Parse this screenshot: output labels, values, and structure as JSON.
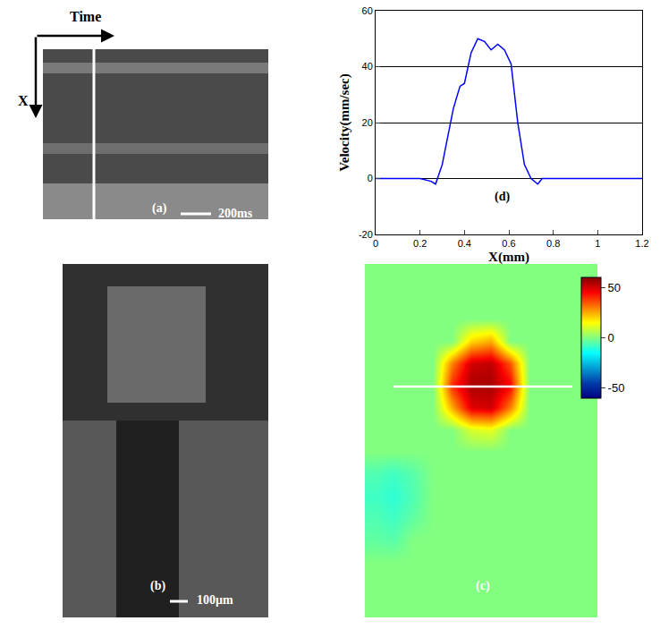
{
  "chart_data": [
    {
      "type": "image",
      "title": "(a)",
      "annotations": [
        "Time",
        "X",
        "200ms"
      ]
    },
    {
      "type": "image",
      "title": "(b)",
      "annotations": [
        "100µm"
      ]
    },
    {
      "type": "heatmap",
      "title": "(c)",
      "z": [
        [
          0,
          0,
          0,
          0,
          0,
          0,
          0,
          0,
          0,
          0,
          0,
          0
        ],
        [
          0,
          0,
          0,
          0,
          0,
          0,
          0,
          0,
          0,
          0,
          0,
          0
        ],
        [
          0,
          0,
          0,
          0,
          0,
          0,
          0,
          0,
          0,
          0,
          0,
          0
        ],
        [
          0,
          0,
          0,
          0,
          0,
          20,
          25,
          0,
          0,
          0,
          0,
          0
        ],
        [
          0,
          0,
          0,
          0,
          30,
          50,
          52,
          35,
          0,
          0,
          0,
          0
        ],
        [
          0,
          0,
          0,
          0,
          40,
          55,
          55,
          45,
          0,
          0,
          0,
          0
        ],
        [
          0,
          0,
          0,
          0,
          25,
          48,
          50,
          30,
          0,
          0,
          0,
          0
        ],
        [
          0,
          0,
          0,
          0,
          0,
          10,
          12,
          0,
          0,
          0,
          0,
          0
        ],
        [
          0,
          0,
          0,
          0,
          0,
          0,
          0,
          0,
          0,
          0,
          0,
          0
        ],
        [
          -6,
          -8,
          -5,
          0,
          0,
          0,
          0,
          0,
          0,
          0,
          0,
          0
        ],
        [
          -8,
          -10,
          -6,
          0,
          0,
          0,
          0,
          0,
          0,
          0,
          0,
          0
        ],
        [
          -6,
          -8,
          -4,
          0,
          0,
          0,
          0,
          0,
          0,
          0,
          0,
          0
        ],
        [
          -4,
          -5,
          0,
          0,
          0,
          0,
          0,
          0,
          0,
          0,
          0,
          0
        ],
        [
          0,
          0,
          0,
          0,
          0,
          0,
          0,
          0,
          0,
          0,
          0,
          0
        ],
        [
          0,
          0,
          0,
          0,
          0,
          0,
          0,
          0,
          0,
          0,
          0,
          0
        ],
        [
          0,
          0,
          0,
          0,
          0,
          0,
          0,
          0,
          0,
          0,
          0,
          0
        ]
      ],
      "zlim": [
        -60,
        60
      ],
      "zticks": [
        -50,
        0,
        50
      ]
    },
    {
      "type": "line",
      "title": "(d)",
      "x": [
        0,
        0.2,
        0.25,
        0.27,
        0.3,
        0.35,
        0.38,
        0.4,
        0.43,
        0.46,
        0.49,
        0.52,
        0.55,
        0.58,
        0.61,
        0.64,
        0.67,
        0.7,
        0.73,
        0.75,
        0.8,
        1.2
      ],
      "values": [
        0,
        0,
        -1,
        -2,
        5,
        25,
        33,
        34,
        45,
        50,
        49,
        46,
        48,
        46,
        41,
        20,
        5,
        0,
        -2,
        0,
        0,
        0
      ],
      "xlim": [
        0,
        1.2
      ],
      "xticks": [
        0,
        0.2,
        0.4,
        0.6,
        0.8,
        1,
        1.2
      ],
      "ylim": [
        -20,
        60
      ],
      "yticks": [
        -20,
        0,
        20,
        40,
        60
      ],
      "xlabel": "X(mm)",
      "ylabel": "Velocity(mm/sec)",
      "grid": true,
      "color": "#0000ff"
    }
  ]
}
